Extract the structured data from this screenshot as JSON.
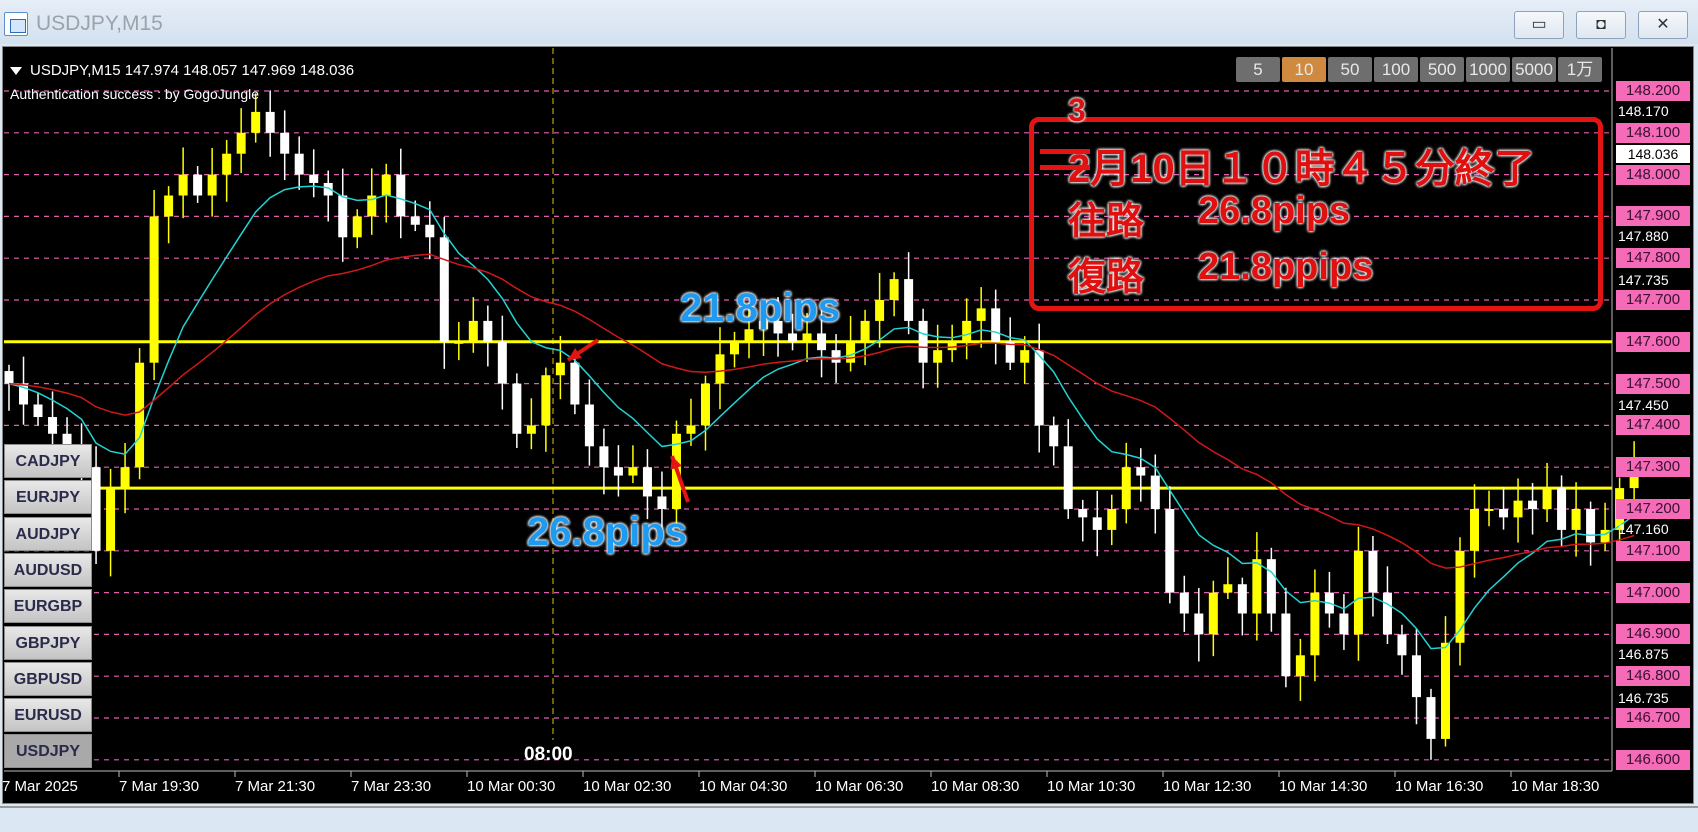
{
  "window": {
    "title": "USDJPY,M15",
    "buttons": {
      "minimize": "▭",
      "restore": "◘",
      "close": "✕"
    }
  },
  "chart_header": {
    "symbol_info": "USDJPY,M15  147.974 148.057 147.969 148.036",
    "auth_text": "Authentication success : by GogoJungle"
  },
  "lot_buttons": [
    {
      "label": "5"
    },
    {
      "label": "10",
      "active": true
    },
    {
      "label": "50"
    },
    {
      "label": "100"
    },
    {
      "label": "500"
    },
    {
      "label": "1000"
    },
    {
      "label": "5000"
    },
    {
      "label": "1万"
    }
  ],
  "symbol_buttons": [
    "CADJPY",
    "EURJPY",
    "AUDJPY",
    "AUDUSD",
    "EURGBP",
    "GBPJPY",
    "GBPUSD",
    "EURUSD",
    "USDJPY"
  ],
  "active_symbol": "USDJPY",
  "price_levels": [
    "148.200",
    "148.100",
    "148.000",
    "147.900",
    "147.800",
    "147.700",
    "147.600",
    "147.500",
    "147.400",
    "147.300",
    "147.200",
    "147.100",
    "147.000",
    "146.900",
    "146.800",
    "146.700",
    "146.600"
  ],
  "price_ticks": [
    "148.170",
    "147.880",
    "147.735",
    "147.450",
    "147.160",
    "146.875",
    "146.735"
  ],
  "current_price": "148.036",
  "time_labels": [
    "7 Mar 2025",
    "7 Mar 19:30",
    "7 Mar 21:30",
    "7 Mar 23:30",
    "10 Mar 00:30",
    "10 Mar 02:30",
    "10 Mar 04:30",
    "10 Mar 06:30",
    "10 Mar 08:30",
    "10 Mar 10:30",
    "10 Mar 12:30",
    "10 Mar 14:30",
    "10 Mar 16:30",
    "10 Mar 18:30"
  ],
  "vertical_line_label": "08:00",
  "annotations": {
    "return_pips": "21.8pips",
    "outbound_pips": "26.8pips",
    "box": {
      "corrected_digit": "3",
      "end_line": "2月10日１０時４５分終了",
      "outbound_label": "往路",
      "outbound_value": "26.8pips",
      "return_label": "復路",
      "return_value": "21.8ppips"
    }
  },
  "colors": {
    "bull": "#ffff00",
    "bear": "#ffffff",
    "fast_ma": "#22d3d3",
    "slow_ma": "#d01818",
    "hline": "#ffff00",
    "grid": "#e060b0",
    "annotation_red": "#e41414",
    "annotation_blue": "#1e9af0"
  },
  "chart_data": {
    "type": "candlestick",
    "ylim": [
      146.6,
      148.2
    ],
    "horizontal_lines": [
      147.6,
      147.25
    ],
    "closes": [
      147.5,
      147.45,
      147.42,
      147.38,
      147.35,
      147.3,
      147.1,
      147.25,
      147.3,
      147.55,
      147.9,
      147.95,
      148.0,
      147.95,
      148.0,
      148.05,
      148.1,
      148.15,
      148.1,
      148.05,
      148.0,
      147.98,
      147.95,
      147.85,
      147.9,
      147.95,
      148.0,
      147.9,
      147.88,
      147.85,
      147.6,
      147.6,
      147.65,
      147.6,
      147.5,
      147.38,
      147.4,
      147.52,
      147.55,
      147.45,
      147.35,
      147.3,
      147.28,
      147.3,
      147.23,
      147.2,
      147.38,
      147.4,
      147.5,
      147.57,
      147.6,
      147.63,
      147.65,
      147.62,
      147.6,
      147.62,
      147.58,
      147.55,
      147.6,
      147.65,
      147.7,
      147.75,
      147.65,
      147.55,
      147.58,
      147.6,
      147.65,
      147.68,
      147.6,
      147.55,
      147.58,
      147.4,
      147.35,
      147.2,
      147.18,
      147.15,
      147.2,
      147.3,
      147.28,
      147.2,
      147.0,
      146.95,
      146.9,
      147.0,
      147.02,
      146.95,
      147.08,
      146.95,
      146.8,
      146.85,
      147.0,
      146.95,
      146.9,
      147.1,
      147.0,
      146.9,
      146.85,
      146.75,
      146.65,
      146.88,
      147.1,
      147.2,
      147.2,
      147.18,
      147.22,
      147.2,
      147.25,
      147.15,
      147.2,
      147.12,
      147.15,
      147.25,
      147.3
    ]
  }
}
